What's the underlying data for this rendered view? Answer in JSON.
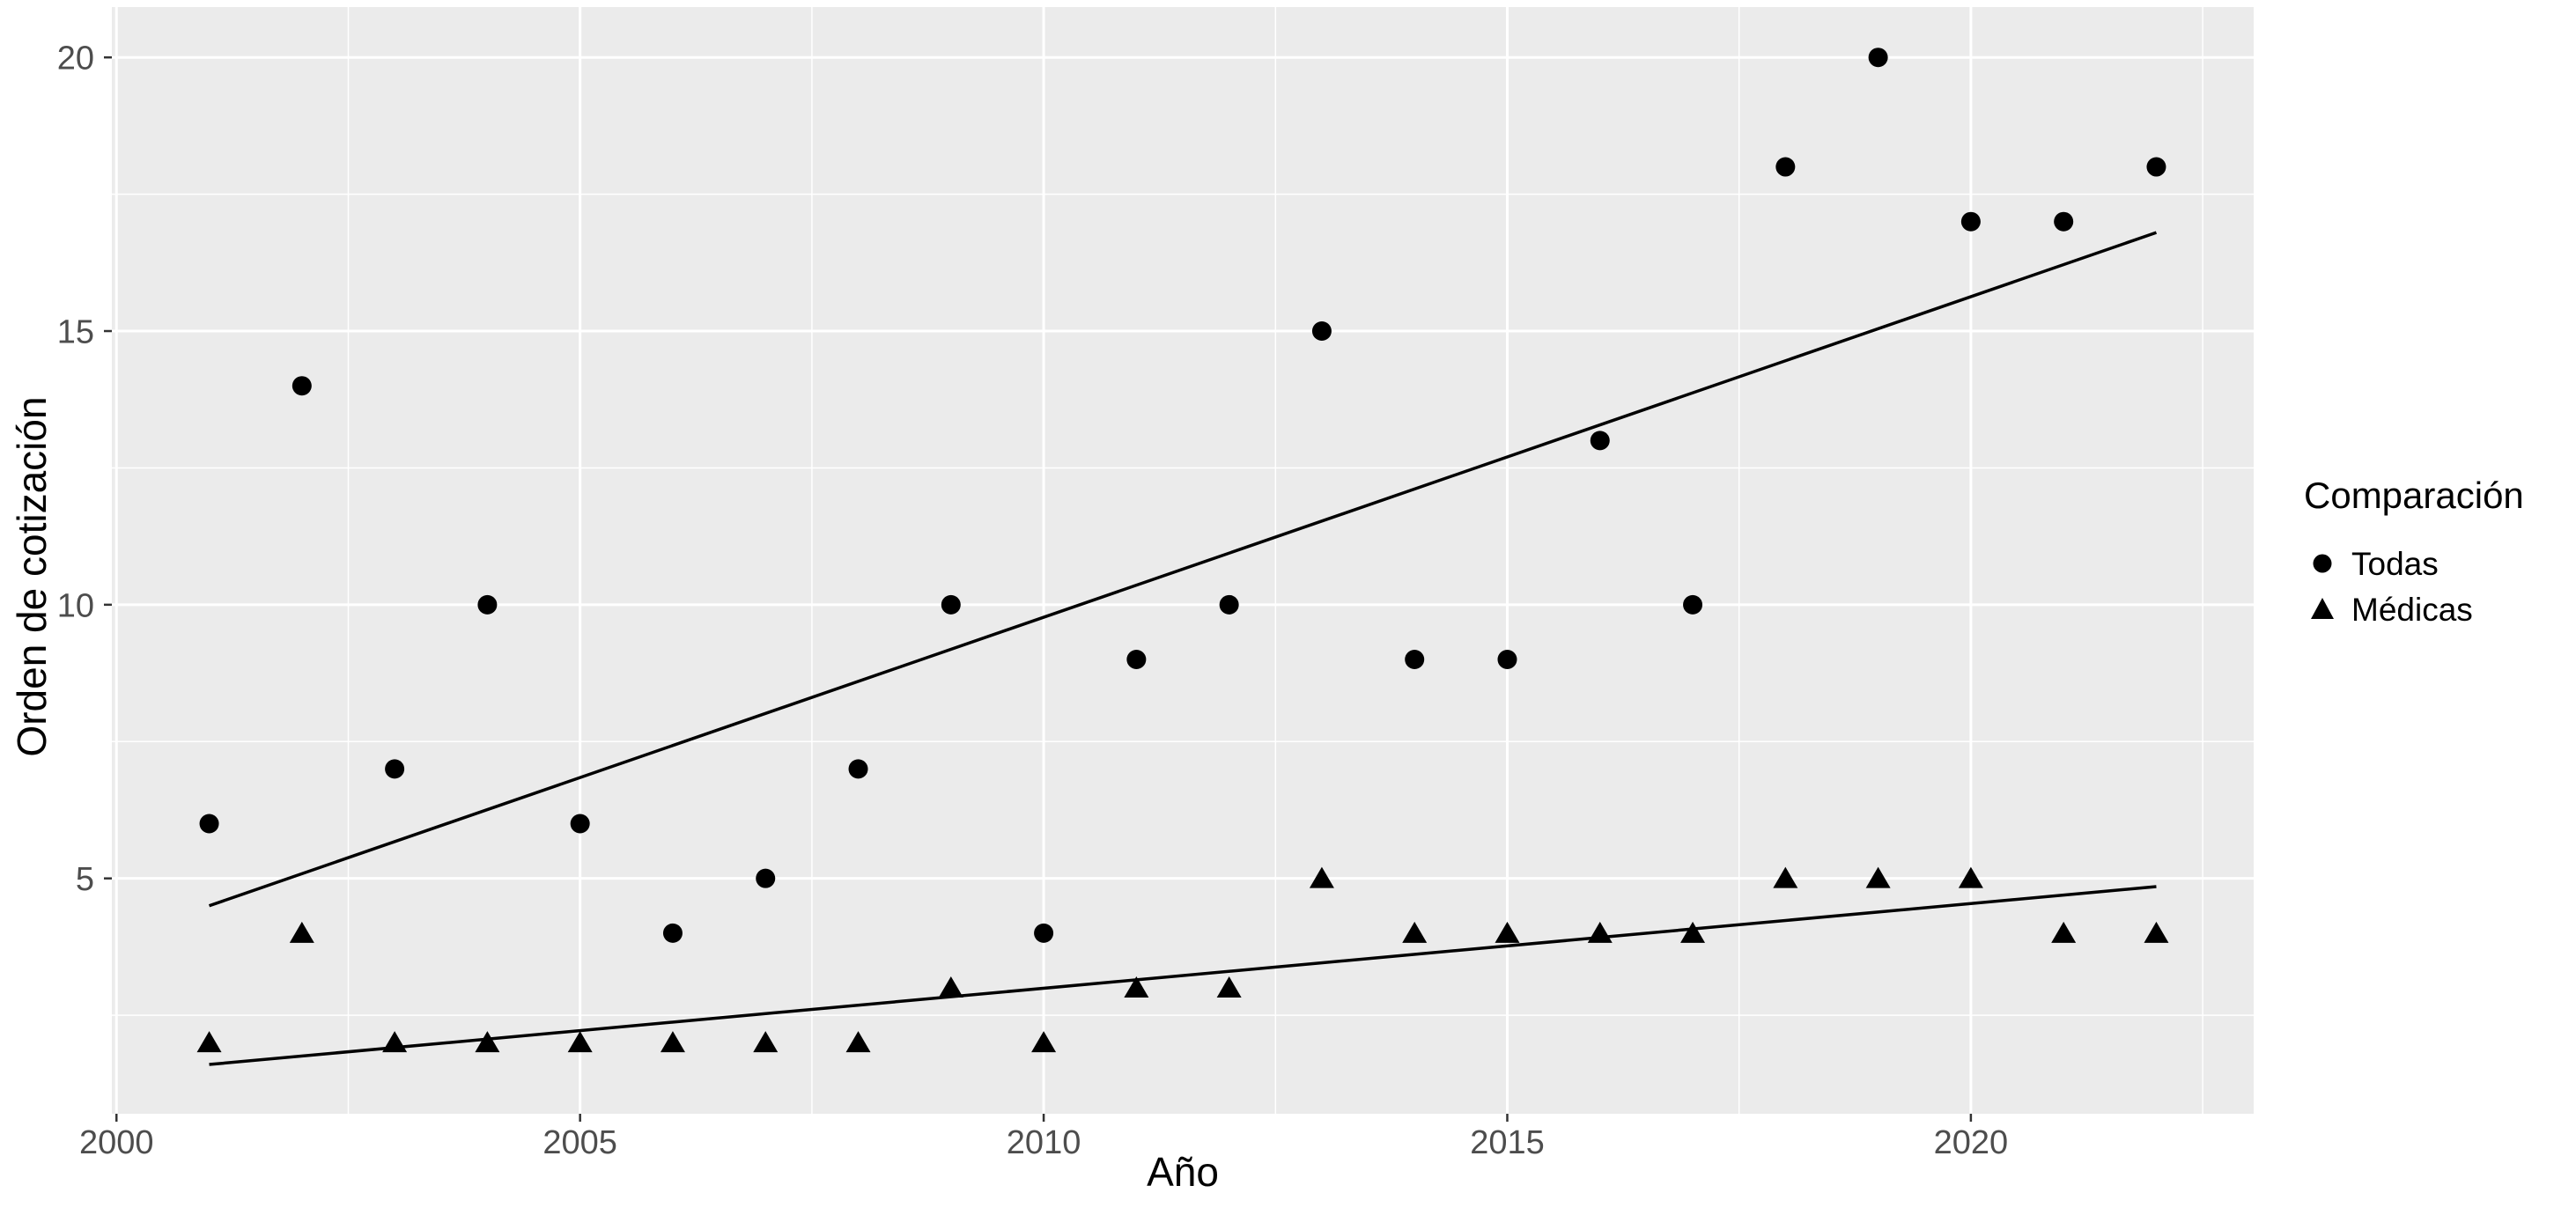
{
  "figure": {
    "background": "#FFFFFF",
    "panel_background": "#EBEBEB",
    "grid_color": "#FFFFFF",
    "point_color": "#000000",
    "trend_line_color": "#000000",
    "tick_label_color": "#4D4D4D",
    "tick_mark_color": "#333333",
    "axis_title_color": "#000000"
  },
  "chart_data": {
    "type": "scatter",
    "title": "",
    "xlabel": "Año",
    "ylabel": "Orden de cotización",
    "legend_title": "Comparación",
    "legend_position": "right",
    "grid": true,
    "xlim": [
      1999.95,
      2023.05
    ],
    "ylim": [
      0.7,
      20.92
    ],
    "x_ticks": [
      2000,
      2005,
      2010,
      2015,
      2020
    ],
    "y_ticks": [
      5,
      10,
      15,
      20
    ],
    "x": [
      2001,
      2002,
      2003,
      2004,
      2005,
      2006,
      2007,
      2008,
      2009,
      2010,
      2011,
      2012,
      2013,
      2014,
      2015,
      2016,
      2017,
      2018,
      2019,
      2020,
      2021,
      2022
    ],
    "series": [
      {
        "name": "Todas",
        "marker": "circle",
        "values": [
          6,
          14,
          7,
          10,
          6,
          4,
          5,
          7,
          10,
          4,
          9,
          10,
          15,
          9,
          9,
          13,
          10,
          18,
          20,
          17,
          17,
          18
        ],
        "trend": {
          "x": [
            2001,
            2022
          ],
          "y": [
            4.5,
            16.8
          ]
        }
      },
      {
        "name": "Médicas",
        "marker": "triangle",
        "values": [
          2,
          4,
          2,
          2,
          2,
          2,
          2,
          2,
          3,
          2,
          3,
          3,
          5,
          4,
          4,
          4,
          4,
          5,
          5,
          5,
          4,
          4
        ],
        "trend": {
          "x": [
            2001,
            2022
          ],
          "y": [
            1.6,
            4.85
          ]
        }
      }
    ]
  }
}
